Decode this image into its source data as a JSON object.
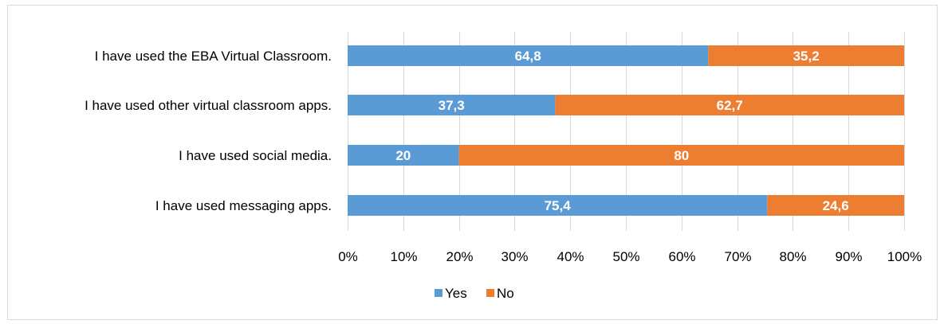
{
  "chart_data": {
    "type": "bar",
    "orientation": "horizontal",
    "stacked": "100%",
    "title": "",
    "xlabel": "",
    "ylabel": "",
    "categories": [
      "I have used the EBA Virtual Classroom.",
      "I have used other virtual classroom apps.",
      "I have used social media.",
      "I have used messaging apps."
    ],
    "series": [
      {
        "name": "Yes",
        "color": "#5b9bd5",
        "values": [
          64.8,
          37.3,
          20,
          75.4
        ],
        "labels": [
          "64,8",
          "37,3",
          "20",
          "75,4"
        ]
      },
      {
        "name": "No",
        "color": "#ed7d31",
        "values": [
          35.2,
          62.7,
          80,
          24.6
        ],
        "labels": [
          "35,2",
          "62,7",
          "80",
          "24,6"
        ]
      }
    ],
    "xlim": [
      0,
      100
    ],
    "x_ticks": [
      "0%",
      "10%",
      "20%",
      "30%",
      "40%",
      "50%",
      "60%",
      "70%",
      "80%",
      "90%",
      "100%"
    ],
    "grid": true,
    "legend_position": "bottom"
  }
}
